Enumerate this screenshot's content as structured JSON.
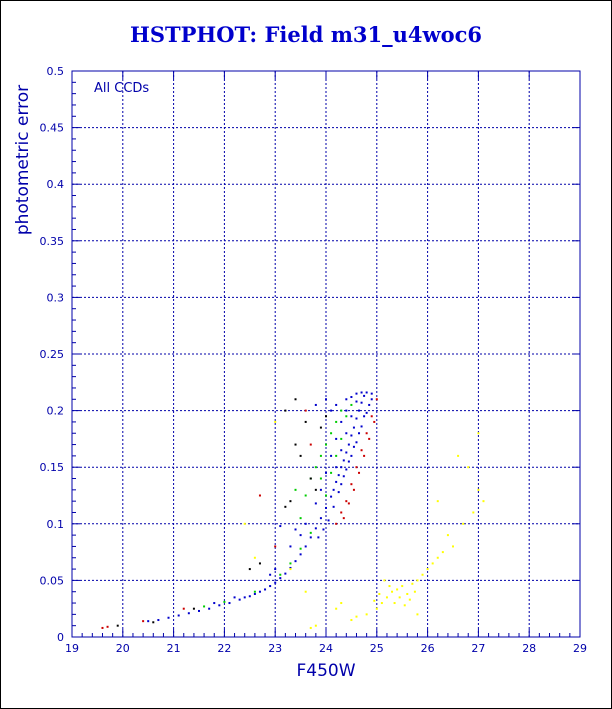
{
  "chart_data": {
    "type": "scatter",
    "title": "HSTPHOT: Field m31_u4woc6",
    "xlabel": "F450W",
    "ylabel": "photometric error",
    "annotation": "All CCDs",
    "xlim": [
      19,
      29
    ],
    "ylim": [
      0,
      0.5
    ],
    "xticks": [
      19,
      20,
      21,
      22,
      23,
      24,
      25,
      26,
      27,
      28,
      29
    ],
    "yticks": [
      0,
      0.05,
      0.1,
      0.15,
      0.2,
      0.25,
      0.3,
      0.35,
      0.4,
      0.45,
      0.5
    ],
    "xtick_labels": [
      "19",
      "20",
      "21",
      "22",
      "23",
      "24",
      "25",
      "26",
      "27",
      "28",
      "29"
    ],
    "ytick_labels": [
      "0",
      "0.05",
      "0.1",
      "0.15",
      "0.2",
      "0.25",
      "0.3",
      "0.35",
      "0.4",
      "0.45",
      "0.5"
    ],
    "grid": true,
    "colors": {
      "axes": "#0000aa",
      "grid": "#0000aa",
      "title": "#0000cc"
    },
    "series": [
      {
        "color": "#0000cc",
        "points": [
          [
            20.5,
            0.014
          ],
          [
            20.7,
            0.015
          ],
          [
            20.9,
            0.017
          ],
          [
            21.1,
            0.019
          ],
          [
            21.3,
            0.021
          ],
          [
            21.5,
            0.023
          ],
          [
            21.7,
            0.025
          ],
          [
            21.9,
            0.028
          ],
          [
            22.1,
            0.03
          ],
          [
            22.3,
            0.033
          ],
          [
            22.5,
            0.036
          ],
          [
            22.7,
            0.04
          ],
          [
            22.9,
            0.045
          ],
          [
            23.0,
            0.048
          ],
          [
            23.1,
            0.052
          ],
          [
            23.2,
            0.056
          ],
          [
            23.3,
            0.061
          ],
          [
            23.4,
            0.067
          ],
          [
            23.5,
            0.073
          ],
          [
            23.6,
            0.08
          ],
          [
            23.7,
            0.088
          ],
          [
            23.8,
            0.096
          ],
          [
            23.9,
            0.105
          ],
          [
            24.0,
            0.114
          ],
          [
            24.1,
            0.124
          ],
          [
            24.15,
            0.13
          ],
          [
            24.2,
            0.137
          ],
          [
            24.25,
            0.143
          ],
          [
            24.3,
            0.15
          ],
          [
            24.35,
            0.156
          ],
          [
            24.4,
            0.163
          ],
          [
            24.45,
            0.17
          ],
          [
            24.5,
            0.178
          ],
          [
            24.55,
            0.185
          ],
          [
            24.6,
            0.193
          ],
          [
            24.65,
            0.2
          ],
          [
            24.7,
            0.207
          ],
          [
            24.75,
            0.213
          ],
          [
            24.8,
            0.216
          ],
          [
            24.3,
            0.135
          ],
          [
            24.4,
            0.148
          ],
          [
            24.5,
            0.16
          ],
          [
            24.6,
            0.172
          ],
          [
            24.7,
            0.186
          ],
          [
            24.8,
            0.198
          ],
          [
            24.9,
            0.21
          ],
          [
            24.2,
            0.15
          ],
          [
            24.3,
            0.165
          ],
          [
            24.4,
            0.18
          ],
          [
            24.5,
            0.195
          ],
          [
            24.6,
            0.208
          ],
          [
            24.4,
            0.2
          ],
          [
            24.5,
            0.212
          ],
          [
            24.1,
            0.16
          ],
          [
            24.2,
            0.175
          ],
          [
            24.3,
            0.19
          ],
          [
            24.4,
            0.21
          ],
          [
            24.0,
            0.145
          ],
          [
            23.9,
            0.13
          ],
          [
            23.8,
            0.118
          ],
          [
            24.6,
            0.215
          ],
          [
            24.7,
            0.216
          ],
          [
            24.9,
            0.215
          ],
          [
            24.85,
            0.205
          ],
          [
            24.75,
            0.195
          ],
          [
            24.65,
            0.18
          ],
          [
            24.55,
            0.168
          ],
          [
            24.45,
            0.155
          ],
          [
            24.35,
            0.142
          ],
          [
            24.25,
            0.128
          ],
          [
            24.15,
            0.115
          ],
          [
            24.05,
            0.103
          ],
          [
            23.95,
            0.095
          ],
          [
            23.85,
            0.088
          ],
          [
            22.8,
            0.042
          ],
          [
            22.6,
            0.038
          ],
          [
            22.4,
            0.035
          ],
          [
            23.0,
            0.06
          ],
          [
            23.5,
            0.09
          ],
          [
            23.3,
            0.08
          ],
          [
            24.0,
            0.21
          ],
          [
            23.8,
            0.205
          ],
          [
            23.1,
            0.098
          ],
          [
            22.9,
            0.055
          ],
          [
            21.8,
            0.03
          ],
          [
            22.2,
            0.035
          ],
          [
            23.6,
            0.1
          ],
          [
            23.4,
            0.095
          ],
          [
            24.1,
            0.2
          ],
          [
            24.2,
            0.205
          ]
        ]
      },
      {
        "color": "#00cc00",
        "points": [
          [
            21.6,
            0.027
          ],
          [
            22.0,
            0.031
          ],
          [
            22.6,
            0.04
          ],
          [
            23.1,
            0.055
          ],
          [
            23.3,
            0.065
          ],
          [
            23.5,
            0.078
          ],
          [
            23.7,
            0.092
          ],
          [
            23.8,
            0.15
          ],
          [
            23.9,
            0.14
          ],
          [
            24.0,
            0.17
          ],
          [
            24.1,
            0.18
          ],
          [
            24.2,
            0.19
          ],
          [
            24.3,
            0.2
          ],
          [
            23.6,
            0.125
          ],
          [
            23.5,
            0.105
          ],
          [
            24.4,
            0.195
          ],
          [
            24.0,
            0.125
          ],
          [
            23.9,
            0.16
          ],
          [
            24.2,
            0.16
          ],
          [
            24.1,
            0.145
          ],
          [
            23.7,
            0.14
          ],
          [
            23.4,
            0.13
          ],
          [
            24.3,
            0.175
          ],
          [
            24.5,
            0.205
          ]
        ]
      },
      {
        "color": "#cc0000",
        "points": [
          [
            19.6,
            0.008
          ],
          [
            19.7,
            0.009
          ],
          [
            20.4,
            0.014
          ],
          [
            21.2,
            0.025
          ],
          [
            22.7,
            0.125
          ],
          [
            23.0,
            0.08
          ],
          [
            24.2,
            0.1
          ],
          [
            24.3,
            0.11
          ],
          [
            24.4,
            0.12
          ],
          [
            24.5,
            0.135
          ],
          [
            24.6,
            0.15
          ],
          [
            24.7,
            0.165
          ],
          [
            24.8,
            0.18
          ],
          [
            24.9,
            0.195
          ],
          [
            25.0,
            0.21
          ],
          [
            24.35,
            0.105
          ],
          [
            24.45,
            0.118
          ],
          [
            24.55,
            0.13
          ],
          [
            24.65,
            0.145
          ],
          [
            24.75,
            0.16
          ],
          [
            24.85,
            0.175
          ],
          [
            24.95,
            0.19
          ],
          [
            23.6,
            0.2
          ],
          [
            23.7,
            0.17
          ]
        ]
      },
      {
        "color": "#000000",
        "points": [
          [
            19.9,
            0.01
          ],
          [
            20.6,
            0.013
          ],
          [
            21.4,
            0.025
          ],
          [
            22.5,
            0.06
          ],
          [
            22.7,
            0.065
          ],
          [
            23.2,
            0.115
          ],
          [
            23.3,
            0.12
          ],
          [
            23.4,
            0.17
          ],
          [
            23.5,
            0.16
          ],
          [
            23.6,
            0.19
          ],
          [
            23.7,
            0.14
          ],
          [
            23.8,
            0.13
          ],
          [
            23.9,
            0.185
          ],
          [
            24.0,
            0.195
          ],
          [
            23.2,
            0.2
          ],
          [
            23.4,
            0.21
          ]
        ]
      },
      {
        "color": "#ffff00",
        "points": [
          [
            23.7,
            0.008
          ],
          [
            23.8,
            0.01
          ],
          [
            24.5,
            0.015
          ],
          [
            24.6,
            0.018
          ],
          [
            24.8,
            0.02
          ],
          [
            25.0,
            0.025
          ],
          [
            25.1,
            0.03
          ],
          [
            25.2,
            0.035
          ],
          [
            25.3,
            0.04
          ],
          [
            25.4,
            0.042
          ],
          [
            25.5,
            0.045
          ],
          [
            25.6,
            0.038
          ],
          [
            25.7,
            0.047
          ],
          [
            25.8,
            0.05
          ],
          [
            25.9,
            0.055
          ],
          [
            26.0,
            0.06
          ],
          [
            26.1,
            0.065
          ],
          [
            26.2,
            0.07
          ],
          [
            26.3,
            0.075
          ],
          [
            25.35,
            0.03
          ],
          [
            25.45,
            0.035
          ],
          [
            25.55,
            0.028
          ],
          [
            25.65,
            0.033
          ],
          [
            25.75,
            0.04
          ],
          [
            25.25,
            0.045
          ],
          [
            25.15,
            0.05
          ],
          [
            25.05,
            0.038
          ],
          [
            24.95,
            0.032
          ],
          [
            26.5,
            0.08
          ],
          [
            26.7,
            0.1
          ],
          [
            26.9,
            0.11
          ],
          [
            27.0,
            0.13
          ],
          [
            26.8,
            0.15
          ],
          [
            27.0,
            0.18
          ],
          [
            26.2,
            0.12
          ],
          [
            26.6,
            0.16
          ],
          [
            22.4,
            0.1
          ],
          [
            22.6,
            0.07
          ],
          [
            23.0,
            0.19
          ],
          [
            23.3,
            0.06
          ],
          [
            23.6,
            0.04
          ],
          [
            24.3,
            0.03
          ],
          [
            24.2,
            0.025
          ],
          [
            25.8,
            0.02
          ],
          [
            26.4,
            0.09
          ],
          [
            27.1,
            0.12
          ]
        ]
      }
    ]
  }
}
